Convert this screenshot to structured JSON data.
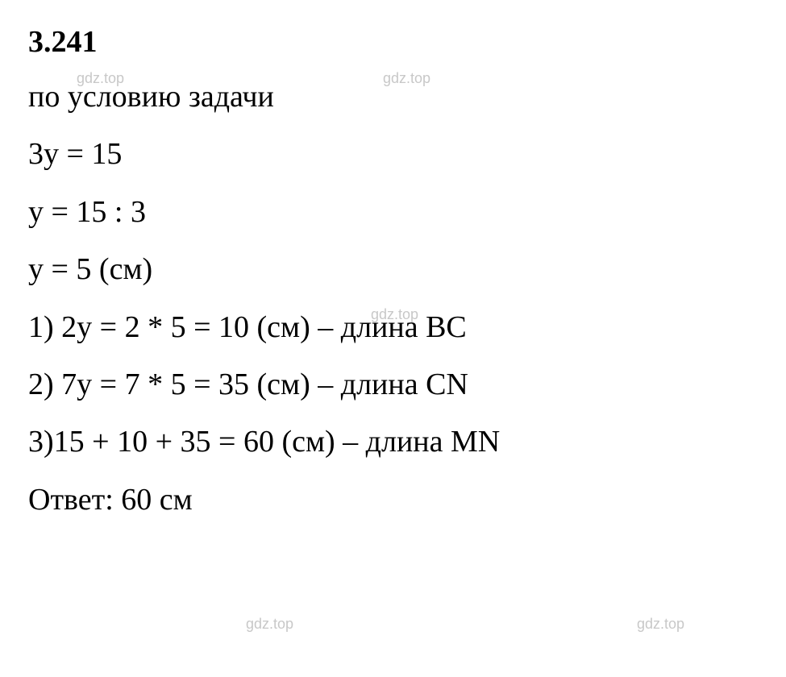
{
  "problem_number": "3.241",
  "lines": {
    "condition": "по условию задачи",
    "eq1": "3y = 15",
    "eq2": "y = 15 : 3",
    "eq3": "y = 5 (см)",
    "step1": "1) 2y = 2 * 5 = 10 (см) – длина BC",
    "step2": "2) 7y = 7 * 5 = 35 (см) – длина CN",
    "step3": "3)15 + 10 + 35 = 60 (см) – длина MN",
    "answer": "Ответ: 60 см"
  },
  "watermark": "gdz.top",
  "colors": {
    "text": "#000000",
    "background": "#ffffff",
    "watermark": "#c8c8c8"
  },
  "typography": {
    "main_fontsize": 38,
    "watermark_fontsize": 18,
    "font_family": "Times New Roman"
  }
}
